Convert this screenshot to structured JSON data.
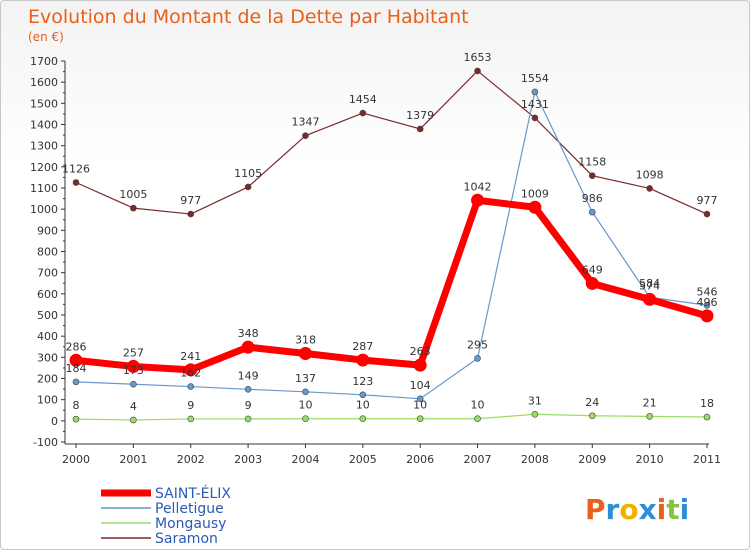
{
  "chart_data": {
    "type": "line",
    "title": "Evolution du Montant de la Dette par Habitant",
    "subtitle": "(en €)",
    "xlabel": "",
    "ylabel": "",
    "categories": [
      "2000",
      "2001",
      "2002",
      "2003",
      "2004",
      "2005",
      "2006",
      "2007",
      "2008",
      "2009",
      "2010",
      "2011"
    ],
    "ylim": [
      -100,
      1700
    ],
    "yticks": [
      -100,
      0,
      100,
      200,
      300,
      400,
      500,
      600,
      700,
      800,
      900,
      1000,
      1100,
      1200,
      1300,
      1400,
      1500,
      1600,
      1700
    ],
    "grid": false,
    "legend_position": "bottom-left",
    "series": [
      {
        "name": "SAINT-ÉLIX",
        "color": "#ff0000",
        "values": [
          286,
          257,
          241,
          348,
          318,
          287,
          263,
          1042,
          1009,
          649,
          574,
          496
        ]
      },
      {
        "name": "Pelletigue",
        "color": "#6699cc",
        "values": [
          184,
          173,
          162,
          149,
          137,
          123,
          104,
          295,
          1554,
          986,
          584,
          546
        ]
      },
      {
        "name": "Mongausy",
        "color": "#99dd66",
        "values": [
          8,
          4,
          9,
          9,
          10,
          10,
          10,
          10,
          31,
          24,
          21,
          18
        ]
      },
      {
        "name": "Saramon",
        "color": "#7a2a2a",
        "values": [
          1126,
          1005,
          977,
          1105,
          1347,
          1454,
          1379,
          1653,
          1431,
          1158,
          1098,
          977
        ]
      }
    ]
  },
  "logo": {
    "letters": [
      "P",
      "r",
      "o",
      "x",
      "i",
      "t",
      "i"
    ],
    "colors": [
      "#e8601a",
      "#2c8fd6",
      "#f0b000",
      "#2c8fd6",
      "#e8601a",
      "#8ac43f",
      "#2c8fd6"
    ]
  }
}
